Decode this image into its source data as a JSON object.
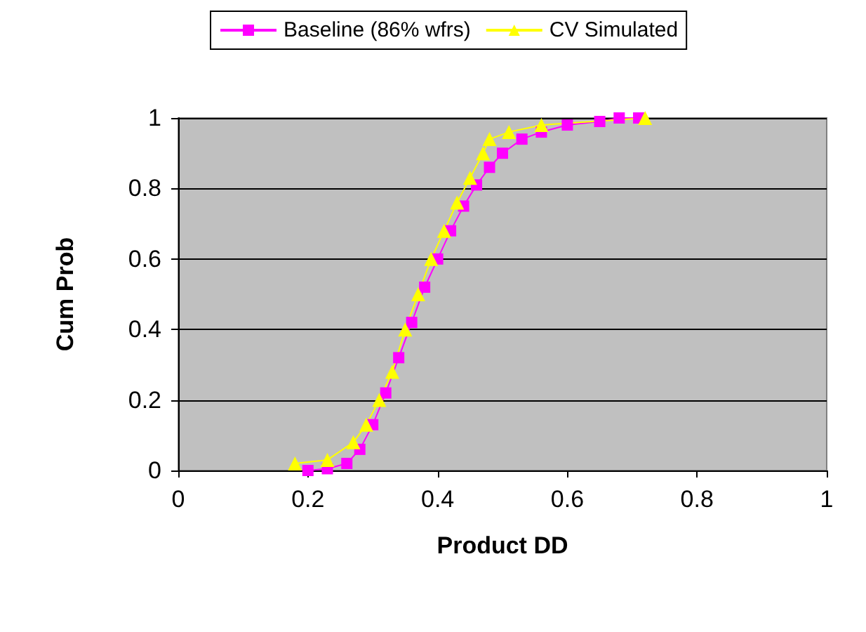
{
  "chart_data": {
    "type": "line",
    "xlabel": "Product DD",
    "ylabel": "Cum Prob",
    "xlim": [
      0,
      1
    ],
    "xticks": [
      0,
      0.2,
      0.4,
      0.6,
      0.8,
      1
    ],
    "ylim": [
      0,
      1
    ],
    "yticks": [
      0,
      0.2,
      0.4,
      0.6,
      0.8,
      1
    ],
    "grid": "y",
    "legend": "top",
    "series": [
      {
        "name": "Baseline (86% wfrs)",
        "color": "#ff00ff",
        "marker": "square",
        "x": [
          0.2,
          0.23,
          0.26,
          0.28,
          0.3,
          0.32,
          0.34,
          0.36,
          0.38,
          0.4,
          0.42,
          0.44,
          0.46,
          0.48,
          0.5,
          0.53,
          0.56,
          0.6,
          0.65,
          0.68,
          0.71
        ],
        "values": [
          0,
          0.005,
          0.02,
          0.06,
          0.13,
          0.22,
          0.32,
          0.42,
          0.52,
          0.6,
          0.68,
          0.75,
          0.81,
          0.86,
          0.9,
          0.94,
          0.96,
          0.98,
          0.99,
          1,
          1
        ]
      },
      {
        "name": "CV Simulated",
        "color": "#ffff00",
        "marker": "triangle",
        "x": [
          0.18,
          0.23,
          0.27,
          0.29,
          0.31,
          0.33,
          0.35,
          0.37,
          0.39,
          0.41,
          0.43,
          0.45,
          0.47,
          0.48,
          0.51,
          0.56,
          0.72
        ],
        "values": [
          0.02,
          0.03,
          0.08,
          0.13,
          0.2,
          0.28,
          0.4,
          0.5,
          0.6,
          0.68,
          0.76,
          0.83,
          0.9,
          0.94,
          0.96,
          0.98,
          1
        ]
      }
    ]
  }
}
